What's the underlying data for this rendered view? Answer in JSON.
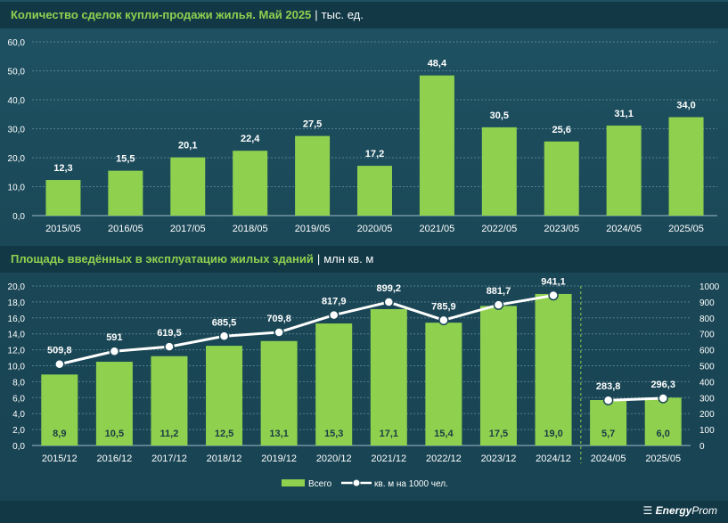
{
  "chart_data": [
    {
      "type": "bar",
      "title": "Количество сделок купли-продажи жилья. Май 2025",
      "unit": "тыс. ед.",
      "categories": [
        "2015/05",
        "2016/05",
        "2017/05",
        "2018/05",
        "2019/05",
        "2020/05",
        "2021/05",
        "2022/05",
        "2023/05",
        "2024/05",
        "2025/05"
      ],
      "values": [
        12.3,
        15.5,
        20.1,
        22.4,
        27.5,
        17.2,
        48.4,
        30.5,
        25.6,
        31.1,
        34.0
      ],
      "value_labels": [
        "12,3",
        "15,5",
        "20,1",
        "22,4",
        "27,5",
        "17,2",
        "48,4",
        "30,5",
        "25,6",
        "31,1",
        "34,0"
      ],
      "ylim": [
        0,
        60
      ],
      "yticks": [
        "0,0",
        "10,0",
        "20,0",
        "30,0",
        "40,0",
        "50,0",
        "60,0"
      ],
      "grid": true,
      "colors": {
        "bar": "#8fd14f"
      }
    },
    {
      "type": "bar+line",
      "title": "Площадь введённых в эксплуатацию жилых зданий",
      "unit": "млн кв. м",
      "categories": [
        "2015/12",
        "2016/12",
        "2017/12",
        "2018/12",
        "2019/12",
        "2020/12",
        "2021/12",
        "2022/12",
        "2023/12",
        "2024/12",
        "2024/05",
        "2025/05"
      ],
      "series": [
        {
          "name": "Всего",
          "axis": "left",
          "values": [
            8.9,
            10.5,
            11.2,
            12.5,
            13.1,
            15.3,
            17.1,
            15.4,
            17.5,
            19.0,
            5.7,
            6.0
          ],
          "value_labels": [
            "8,9",
            "10,5",
            "11,2",
            "12,5",
            "13,1",
            "15,3",
            "17,1",
            "15,4",
            "17,5",
            "19,0",
            "5,7",
            "6,0"
          ]
        },
        {
          "name": "кв. м на 1000 чел.",
          "axis": "right",
          "values": [
            509.8,
            591,
            619.5,
            685.5,
            709.8,
            817.9,
            899.2,
            785.9,
            881.7,
            941.1,
            283.8,
            296.3
          ],
          "value_labels": [
            "509,8",
            "591",
            "619,5",
            "685,5",
            "709,8",
            "817,9",
            "899,2",
            "785,9",
            "881,7",
            "941,1",
            "283,8",
            "296,3"
          ]
        }
      ],
      "ylim_left": [
        0,
        20
      ],
      "ylim_right": [
        0,
        1000
      ],
      "yticks_left": [
        "0,0",
        "2,0",
        "4,0",
        "6,0",
        "8,0",
        "10,0",
        "12,0",
        "14,0",
        "16,0",
        "18,0",
        "20,0"
      ],
      "yticks_right": [
        "0",
        "100",
        "200",
        "300",
        "400",
        "500",
        "600",
        "700",
        "800",
        "900",
        "1000"
      ],
      "legend_position": "bottom",
      "colors": {
        "bar": "#8fd14f",
        "line": "#ffffff"
      }
    }
  ],
  "brand": {
    "logo_bold": "Energy",
    "logo_rest": "Prom"
  }
}
